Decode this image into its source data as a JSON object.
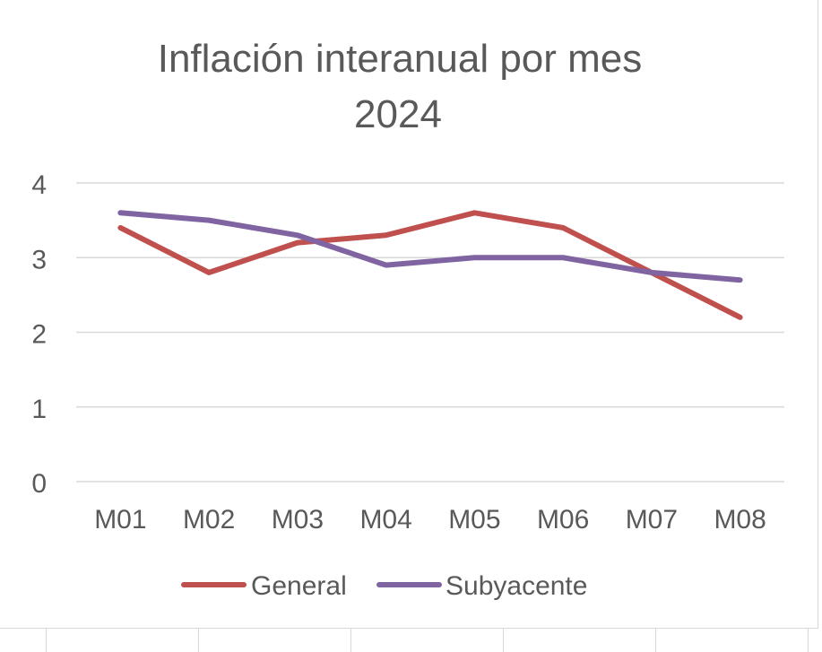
{
  "chart_data": {
    "type": "line",
    "title": "Inflación interanual por mes 2024",
    "title_lines": [
      "Inflación interanual por mes",
      "2024"
    ],
    "categories": [
      "M01",
      "M02",
      "M03",
      "M04",
      "M05",
      "M06",
      "M07",
      "M08"
    ],
    "series": [
      {
        "name": "General",
        "color": "#c0504d",
        "values": [
          3.4,
          2.8,
          3.2,
          3.3,
          3.6,
          3.4,
          2.8,
          2.2
        ]
      },
      {
        "name": "Subyacente",
        "color": "#8064a2",
        "values": [
          3.6,
          3.5,
          3.3,
          2.9,
          3.0,
          3.0,
          2.8,
          2.7
        ]
      }
    ],
    "yticks": [
      "0",
      "1",
      "2",
      "3",
      "4"
    ],
    "ylim": [
      0,
      4
    ],
    "grid": true,
    "legend_position": "bottom",
    "colors": {
      "grid": "#d9d9d9",
      "text": "#595959"
    }
  }
}
